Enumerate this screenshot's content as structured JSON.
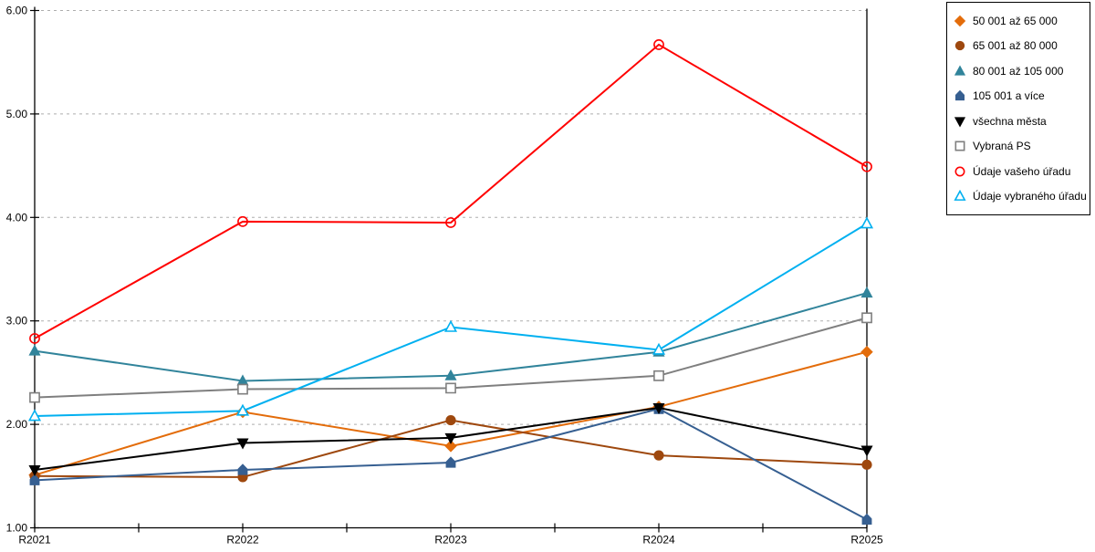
{
  "chart_data": {
    "type": "line",
    "title": "",
    "xlabel": "",
    "ylabel": "",
    "categories": [
      "R2021",
      "R2022",
      "R2023",
      "R2024",
      "R2025"
    ],
    "y_axis": {
      "min": 1,
      "max": 6,
      "tick_labels": [
        "1.00",
        "2.00",
        "3.00",
        "4.00",
        "5.00",
        "6.00"
      ],
      "grid": true,
      "grid_color": "#ADADAD"
    },
    "legend_position": "right",
    "series": [
      {
        "name": "50 001 až 65 000",
        "color": "#E36C0A",
        "marker": "diamond",
        "fill": "solid",
        "values": [
          1.51,
          2.12,
          1.79,
          2.17,
          2.7
        ]
      },
      {
        "name": "65 001 až 80 000",
        "color": "#9E480E",
        "marker": "circle",
        "fill": "solid",
        "values": [
          1.5,
          1.49,
          2.04,
          1.7,
          1.61
        ]
      },
      {
        "name": "80 001 až 105 000",
        "color": "#31849B",
        "marker": "triangle-up",
        "fill": "solid",
        "values": [
          2.71,
          2.42,
          2.47,
          2.7,
          3.27
        ]
      },
      {
        "name": "105 001 a více",
        "color": "#365F91",
        "marker": "pentagon",
        "fill": "solid",
        "values": [
          1.46,
          1.56,
          1.63,
          2.15,
          1.08
        ]
      },
      {
        "name": "všechna města",
        "color": "#000000",
        "marker": "triangle-down",
        "fill": "solid",
        "values": [
          1.56,
          1.82,
          1.87,
          2.16,
          1.75
        ]
      },
      {
        "name": "Vybraná PS",
        "color": "#7F7F7F",
        "marker": "square",
        "fill": "open",
        "values": [
          2.26,
          2.34,
          2.35,
          2.47,
          3.03
        ]
      },
      {
        "name": "Údaje vašeho úřadu",
        "color": "#FF0000",
        "marker": "circle",
        "fill": "open",
        "values": [
          2.83,
          3.96,
          3.95,
          5.67,
          4.49
        ]
      },
      {
        "name": "Údaje vybraného úřadu",
        "color": "#00B0F0",
        "marker": "triangle-up",
        "fill": "open",
        "values": [
          2.08,
          2.13,
          2.94,
          2.72,
          3.94
        ]
      }
    ]
  }
}
